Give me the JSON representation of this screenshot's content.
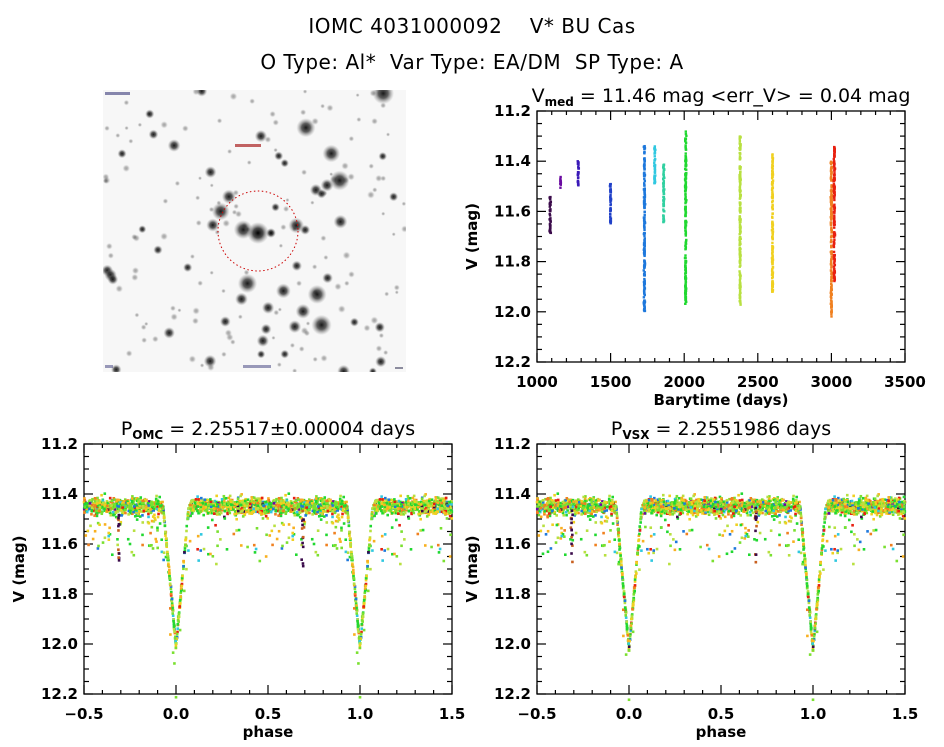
{
  "header": {
    "line1": "IOMC 4031000092    V* BU Cas",
    "line2": "O Type: Al*  Var Type: EA/DM  SP Type: A"
  },
  "sky_image": {
    "description": "Grayscale inverted star field finder chart with dashed red circle around target",
    "circle_color": "#cc0000"
  },
  "chart_data": [
    {
      "id": "light-curve",
      "type": "scatter",
      "title_main": "V",
      "title_sub": "med",
      "title_rest": " = 11.46 mag <err_V> = 0.04 mag",
      "xlabel": "Barytime (days)",
      "ylabel": "V (mag)",
      "xlim": [
        1000,
        3500
      ],
      "ylim": [
        12.2,
        11.2
      ],
      "y_inverted": true,
      "xticks": [
        1000,
        1500,
        2000,
        2500,
        3000,
        3500
      ],
      "xtick_labels": [
        "1000",
        "1500",
        "2000",
        "2500",
        "3000",
        "3500"
      ],
      "yticks": [
        11.2,
        11.4,
        11.6,
        11.8,
        12.0,
        12.2
      ],
      "ytick_labels": [
        "11.2",
        "11.4",
        "11.6",
        "11.8",
        "12.0",
        "12.2"
      ],
      "grid": false,
      "color_scale": "rainbow by time (purple early to red late)",
      "seasons": [
        {
          "t": 1090,
          "vmin": 11.54,
          "vmax": 11.69,
          "color": "#3a0a4a"
        },
        {
          "t": 1160,
          "vmin": 11.46,
          "vmax": 11.51,
          "color": "#6a0aa0"
        },
        {
          "t": 1280,
          "vmin": 11.4,
          "vmax": 11.5,
          "color": "#3a1ab8"
        },
        {
          "t": 1500,
          "vmin": 11.49,
          "vmax": 11.65,
          "color": "#2040c8"
        },
        {
          "t": 1730,
          "vmin": 11.34,
          "vmax": 12.0,
          "color": "#1e78dc"
        },
        {
          "t": 1800,
          "vmin": 11.34,
          "vmax": 11.49,
          "color": "#30c8e0"
        },
        {
          "t": 1860,
          "vmin": 11.41,
          "vmax": 11.65,
          "color": "#30d0a0"
        },
        {
          "t": 2010,
          "vmin": 11.28,
          "vmax": 11.97,
          "color": "#20d830"
        },
        {
          "t": 2380,
          "vmin": 11.3,
          "vmax": 11.98,
          "color": "#b8e040"
        },
        {
          "t": 2600,
          "vmin": 11.37,
          "vmax": 11.92,
          "color": "#f0d020"
        },
        {
          "t": 3000,
          "vmin": 11.4,
          "vmax": 12.02,
          "color": "#f08020"
        },
        {
          "t": 3020,
          "vmin": 11.34,
          "vmax": 11.88,
          "color": "#e82010"
        }
      ]
    },
    {
      "id": "phase-omc",
      "type": "scatter",
      "title_main": "P",
      "title_sub": "OMC",
      "title_rest": " = 2.25517±0.00004 days",
      "xlabel": "phase",
      "ylabel": "V (mag)",
      "xlim": [
        -0.5,
        1.5
      ],
      "ylim": [
        12.2,
        11.2
      ],
      "y_inverted": true,
      "xticks": [
        -0.5,
        0.0,
        0.5,
        1.0,
        1.5
      ],
      "xtick_labels": [
        "−0.5",
        "0.0",
        "0.5",
        "1.0",
        "1.5"
      ],
      "yticks": [
        11.2,
        11.4,
        11.6,
        11.8,
        12.0,
        12.2
      ],
      "ytick_labels": [
        "11.2",
        "11.4",
        "11.6",
        "11.8",
        "12.0",
        "12.2"
      ],
      "grid": false,
      "period_days": 2.25517,
      "baseline_mag": 11.45,
      "primary_eclipses": [
        {
          "phase": 0.0,
          "min_mag": 12.01,
          "half_width": 0.07
        },
        {
          "phase": 1.0,
          "min_mag": 12.01,
          "half_width": 0.07
        }
      ],
      "secondary_dips": [
        {
          "phase": -0.31,
          "min_mag": 11.69
        },
        {
          "phase": 0.69,
          "min_mag": 11.69
        }
      ]
    },
    {
      "id": "phase-vsx",
      "type": "scatter",
      "title_main": "P",
      "title_sub": "VSX",
      "title_rest": " = 2.2551986 days",
      "xlabel": "phase",
      "ylabel": "V (mag)",
      "xlim": [
        -0.5,
        1.5
      ],
      "ylim": [
        12.2,
        11.2
      ],
      "y_inverted": true,
      "xticks": [
        -0.5,
        0.0,
        0.5,
        1.0,
        1.5
      ],
      "xtick_labels": [
        "−0.5",
        "0.0",
        "0.5",
        "1.0",
        "1.5"
      ],
      "yticks": [
        11.2,
        11.4,
        11.6,
        11.8,
        12.0,
        12.2
      ],
      "ytick_labels": [
        "11.2",
        "11.4",
        "11.6",
        "11.8",
        "12.0",
        "12.2"
      ],
      "grid": false,
      "period_days": 2.2551986,
      "baseline_mag": 11.45,
      "primary_eclipses": [
        {
          "phase": 0.0,
          "min_mag": 12.02,
          "half_width": 0.07
        },
        {
          "phase": 1.0,
          "min_mag": 12.02,
          "half_width": 0.07
        }
      ],
      "secondary_dips": [
        {
          "phase": -0.31,
          "min_mag": 11.69
        },
        {
          "phase": 0.69,
          "min_mag": 11.69
        }
      ]
    }
  ]
}
